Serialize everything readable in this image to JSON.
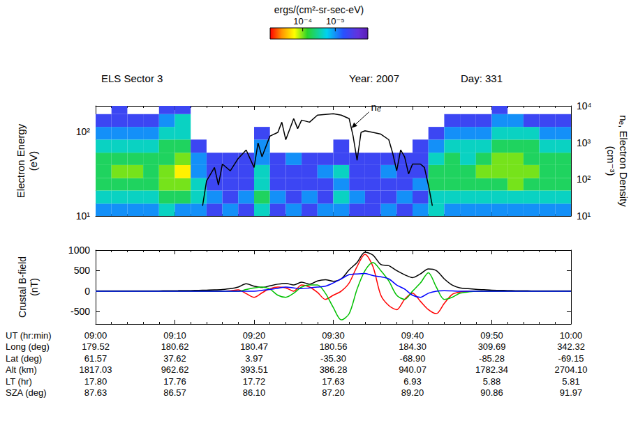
{
  "chart_data": [
    {
      "type": "heatmap",
      "title": "ELS Sector 3",
      "header_texts": [
        "Year: 2007",
        "Day: 331"
      ],
      "xlim": [
        0,
        60
      ],
      "xticks": [
        0,
        10,
        20,
        30,
        40,
        50,
        60
      ],
      "tick_labels": "y",
      "ylabel": "Electron Energy (eV)",
      "ylim": [
        10,
        200
      ],
      "yticks": [
        {
          "value": 10,
          "label": "10¹"
        },
        {
          "value": 100,
          "label": "10²"
        }
      ],
      "y2label": "nₑ, Electron Density (cm⁻³)",
      "y2lim": [
        10,
        10000
      ],
      "y2ticks": [
        {
          "value": 10,
          "label": "10¹"
        },
        {
          "value": 100,
          "label": "10²"
        },
        {
          "value": 1000,
          "label": "10³"
        },
        {
          "value": 10000,
          "label": "10⁴"
        }
      ],
      "log": "y",
      "grid": false,
      "spectrogram": {
        "x_edges": [
          0,
          2,
          4,
          6,
          8,
          10,
          12,
          14,
          16,
          18,
          20,
          22,
          24,
          26,
          28,
          30,
          32,
          34,
          36,
          38,
          40,
          42,
          44,
          46,
          48,
          50,
          52,
          54,
          56,
          58,
          60
        ],
        "energy_edges": [
          10,
          14,
          20,
          28,
          40,
          56,
          80,
          113,
          160,
          200
        ],
        "values": [
          [
            1e-05,
            2.5e-05,
            5e-05,
            5e-05,
            5e-05,
            2.5e-05,
            1e-05,
            4e-06,
            null
          ],
          [
            1e-05,
            2.5e-05,
            5e-05,
            0.0001,
            5e-05,
            2.5e-05,
            1e-05,
            4e-06,
            4e-06
          ],
          [
            1e-05,
            2.5e-05,
            5e-05,
            0.0001,
            5e-05,
            2.5e-05,
            1e-05,
            4e-06,
            null
          ],
          [
            1e-05,
            2.5e-05,
            5e-05,
            5e-05,
            5e-05,
            2.5e-05,
            1e-05,
            4e-06,
            null
          ],
          [
            2.5e-05,
            5e-05,
            0.0001,
            0.0001,
            5e-05,
            5e-05,
            2.5e-05,
            1e-05,
            4e-06
          ],
          [
            1e-05,
            5e-05,
            0.0001,
            0.0002,
            0.0001,
            5e-05,
            2.5e-05,
            2.5e-05,
            4e-06
          ],
          [
            1e-05,
            2.5e-05,
            2.5e-05,
            1e-05,
            1e-05,
            4e-06,
            null,
            null,
            null
          ],
          [
            4e-06,
            1e-05,
            4e-06,
            4e-06,
            4e-06,
            null,
            null,
            null,
            null
          ],
          [
            1e-05,
            4e-06,
            4e-06,
            4e-06,
            4e-06,
            null,
            null,
            null,
            null
          ],
          [
            4e-06,
            1e-05,
            4e-06,
            4e-06,
            4e-06,
            null,
            null,
            null,
            null
          ],
          [
            2.5e-05,
            5e-05,
            2.5e-05,
            2.5e-05,
            1e-05,
            1e-05,
            4e-06,
            null,
            null
          ],
          [
            4e-06,
            1e-05,
            4e-06,
            4e-06,
            4e-06,
            null,
            null,
            null,
            null
          ],
          [
            1e-05,
            4e-06,
            4e-06,
            4e-06,
            1e-05,
            null,
            null,
            null,
            null
          ],
          [
            4e-06,
            1e-05,
            4e-06,
            4e-06,
            4e-06,
            null,
            null,
            null,
            null
          ],
          [
            1e-05,
            4e-06,
            4e-06,
            1e-05,
            4e-06,
            null,
            null,
            null,
            null
          ],
          [
            1e-05,
            2.5e-05,
            1e-05,
            2.5e-05,
            4e-06,
            4e-06,
            null,
            null,
            null
          ],
          [
            4e-06,
            1e-05,
            4e-06,
            4e-06,
            4e-06,
            null,
            null,
            null,
            null
          ],
          [
            4e-06,
            4e-06,
            4e-06,
            4e-06,
            4e-06,
            null,
            null,
            null,
            null
          ],
          [
            1e-05,
            4e-06,
            4e-06,
            1e-05,
            4e-06,
            null,
            null,
            null,
            null
          ],
          [
            4e-06,
            1e-05,
            4e-06,
            4e-06,
            4e-06,
            null,
            null,
            null,
            null
          ],
          [
            1e-05,
            4e-06,
            1e-05,
            4e-06,
            4e-06,
            4e-06,
            null,
            null,
            null
          ],
          [
            2.5e-05,
            2.5e-05,
            5e-05,
            5e-05,
            2.5e-05,
            1e-05,
            4e-06,
            null,
            null
          ],
          [
            1e-05,
            2.5e-05,
            5e-05,
            5e-05,
            5e-05,
            2.5e-05,
            1e-05,
            4e-06,
            null
          ],
          [
            1e-05,
            2.5e-05,
            5e-05,
            5e-05,
            2.5e-05,
            2.5e-05,
            1e-05,
            4e-06,
            null
          ],
          [
            1e-05,
            2.5e-05,
            5e-05,
            0.0001,
            5e-05,
            2.5e-05,
            1e-05,
            4e-06,
            null
          ],
          [
            1e-05,
            2.5e-05,
            5e-05,
            0.0001,
            0.0001,
            5e-05,
            2.5e-05,
            1e-05,
            4e-06
          ],
          [
            1e-05,
            2.5e-05,
            0.0001,
            0.0001,
            0.0001,
            5e-05,
            2.5e-05,
            1e-05,
            null
          ],
          [
            1e-05,
            2.5e-05,
            5e-05,
            0.0001,
            5e-05,
            5e-05,
            2.5e-05,
            4e-06,
            null
          ],
          [
            1e-05,
            2.5e-05,
            5e-05,
            5e-05,
            5e-05,
            2.5e-05,
            1e-05,
            4e-06,
            null
          ],
          [
            1e-05,
            2.5e-05,
            5e-05,
            5e-05,
            5e-05,
            2.5e-05,
            1e-05,
            4e-06,
            null
          ]
        ]
      },
      "colorbar": {
        "label": "ergs/(cm²-sr-sec-eV)",
        "clim": [
          1e-06,
          0.001
        ],
        "cticks": [
          {
            "value": 0.0001,
            "label": "10⁻⁴"
          },
          {
            "value": 1e-05,
            "label": "10⁻⁵"
          }
        ]
      },
      "series": [
        {
          "type": "line",
          "axis": "y2",
          "color": "#000000",
          "x": [
            13.5,
            14,
            15,
            15.5,
            16,
            17,
            18,
            19,
            20,
            20.5,
            21,
            22,
            23,
            23.5,
            24,
            25,
            25.5,
            26,
            27,
            28,
            30,
            31,
            32,
            32.5,
            33,
            33.5,
            34,
            35,
            36,
            37,
            37.5,
            38,
            38.5,
            39,
            39.5,
            40,
            41,
            41.5,
            42,
            42.5
          ],
          "values": [
            19,
            90,
            210,
            70,
            260,
            170,
            370,
            630,
            210,
            980,
            410,
            1500,
            1900,
            3600,
            1200,
            4500,
            2400,
            4100,
            3600,
            5600,
            6100,
            5600,
            4500,
            1500,
            330,
            1900,
            2100,
            1900,
            1700,
            1200,
            510,
            170,
            630,
            410,
            140,
            260,
            260,
            210,
            70,
            19
          ]
        }
      ],
      "annotations": [
        {
          "text": "nₑ",
          "x": 32.3,
          "y": 2500
        }
      ]
    },
    {
      "type": "line",
      "xlabel": "UT (hr:min)",
      "xlim": [
        0,
        60
      ],
      "xticks": [
        {
          "value": 0,
          "label": "09:00"
        },
        {
          "value": 10,
          "label": "09:10"
        },
        {
          "value": 20,
          "label": "09:20"
        },
        {
          "value": 30,
          "label": "09:30"
        },
        {
          "value": 40,
          "label": "09:40"
        },
        {
          "value": 50,
          "label": "09:50"
        },
        {
          "value": 60,
          "label": "10:00"
        }
      ],
      "ylabel": "Crustal B-field (nT)",
      "ylim": [
        -800,
        1000
      ],
      "yticks": [
        -500,
        0,
        500,
        1000
      ],
      "grid": false,
      "x": [
        0,
        1,
        2,
        3,
        4,
        5,
        6,
        7,
        8,
        9,
        10,
        11,
        12,
        13,
        14,
        15,
        16,
        17,
        18,
        19,
        20,
        21,
        22,
        23,
        24,
        25,
        26,
        27,
        28,
        29,
        30,
        31,
        32,
        33,
        34,
        35,
        36,
        37,
        38,
        39,
        40,
        41,
        42,
        43,
        44,
        45,
        46,
        47,
        48,
        49,
        50,
        51,
        52,
        53,
        54,
        55,
        56,
        57,
        58,
        59,
        60
      ],
      "series": [
        {
          "color": "#000000",
          "values": [
            5,
            5,
            5,
            5,
            5,
            5,
            6,
            7,
            8,
            10,
            12,
            14,
            16,
            20,
            25,
            30,
            40,
            60,
            100,
            180,
            120,
            90,
            130,
            170,
            190,
            150,
            220,
            170,
            250,
            280,
            240,
            300,
            520,
            700,
            950,
            880,
            650,
            620,
            500,
            400,
            330,
            420,
            540,
            500,
            300,
            150,
            80,
            60,
            45,
            35,
            25,
            20,
            15,
            12,
            10,
            8,
            7,
            6,
            5,
            5,
            5
          ]
        },
        {
          "color": "#ff0000",
          "values": [
            0,
            0,
            0,
            0,
            0,
            0,
            0,
            0,
            0,
            0,
            0,
            0,
            0,
            0,
            0,
            0,
            0,
            10,
            30,
            -60,
            -150,
            -40,
            60,
            100,
            80,
            0,
            150,
            100,
            -30,
            -200,
            -100,
            0,
            200,
            600,
            900,
            600,
            -100,
            -350,
            -450,
            -200,
            -50,
            -250,
            -450,
            -550,
            -300,
            -80,
            -20,
            -5,
            0,
            0,
            0,
            0,
            0,
            0,
            0,
            0,
            0,
            0,
            0,
            0,
            0
          ]
        },
        {
          "color": "#00c000",
          "values": [
            0,
            0,
            0,
            0,
            0,
            0,
            0,
            0,
            0,
            0,
            0,
            0,
            0,
            0,
            0,
            0,
            0,
            0,
            0,
            40,
            80,
            100,
            50,
            -100,
            -150,
            -50,
            100,
            150,
            150,
            -50,
            -400,
            -700,
            -550,
            50,
            500,
            700,
            500,
            250,
            -100,
            -200,
            0,
            200,
            450,
            100,
            -200,
            -150,
            -50,
            -20,
            0,
            0,
            0,
            0,
            0,
            0,
            0,
            0,
            0,
            0,
            0,
            0,
            0
          ]
        },
        {
          "color": "#0000ff",
          "values": [
            0,
            0,
            0,
            0,
            0,
            0,
            0,
            0,
            0,
            0,
            0,
            0,
            0,
            0,
            0,
            0,
            0,
            0,
            0,
            0,
            0,
            20,
            40,
            70,
            100,
            80,
            60,
            80,
            100,
            120,
            200,
            300,
            400,
            420,
            430,
            380,
            350,
            300,
            150,
            50,
            -100,
            -150,
            -50,
            0,
            10,
            5,
            0,
            0,
            0,
            0,
            0,
            0,
            0,
            0,
            0,
            0,
            0,
            0,
            0,
            0,
            0
          ]
        }
      ],
      "ephemeris_rows": [
        {
          "label": "Long (deg)",
          "values": [
            "179.52",
            "180.62",
            "180.47",
            "180.56",
            "184.30",
            "309.69",
            "342.32"
          ]
        },
        {
          "label": "Lat (deg)",
          "values": [
            "61.57",
            "37.62",
            "3.97",
            "-35.30",
            "-68.90",
            "-85.28",
            "-69.15"
          ]
        },
        {
          "label": "Alt (km)",
          "values": [
            "1817.03",
            "962.62",
            "393.51",
            "386.28",
            "940.07",
            "1782.34",
            "2704.10"
          ]
        },
        {
          "label": "LT (hr)",
          "values": [
            "17.80",
            "17.76",
            "17.72",
            "17.63",
            "6.93",
            "5.88",
            "5.81"
          ]
        },
        {
          "label": "SZA (deg)",
          "values": [
            "87.63",
            "86.57",
            "86.10",
            "87.20",
            "89.20",
            "90.86",
            "91.97"
          ]
        }
      ]
    }
  ]
}
